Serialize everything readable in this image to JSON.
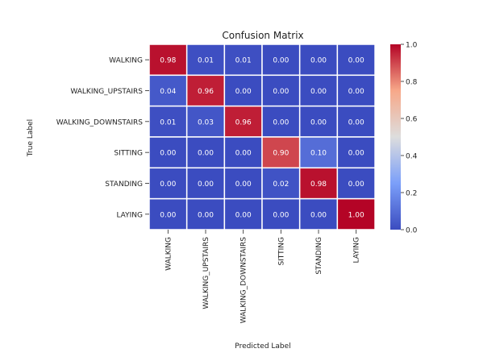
{
  "chart_data": {
    "type": "heatmap",
    "title": "Confusion Matrix",
    "xlabel": "Predicted Label",
    "ylabel": "True Label",
    "row_labels": [
      "WALKING",
      "WALKING_UPSTAIRS",
      "WALKING_DOWNSTAIRS",
      "SITTING",
      "STANDING",
      "LAYING"
    ],
    "col_labels": [
      "WALKING",
      "WALKING_UPSTAIRS",
      "WALKING_DOWNSTAIRS",
      "SITTING",
      "STANDING",
      "LAYING"
    ],
    "values": [
      [
        0.98,
        0.01,
        0.01,
        0.0,
        0.0,
        0.0
      ],
      [
        0.04,
        0.96,
        0.0,
        0.0,
        0.0,
        0.0
      ],
      [
        0.01,
        0.03,
        0.96,
        0.0,
        0.0,
        0.0
      ],
      [
        0.0,
        0.0,
        0.0,
        0.9,
        0.1,
        0.0
      ],
      [
        0.0,
        0.0,
        0.0,
        0.02,
        0.98,
        0.0
      ],
      [
        0.0,
        0.0,
        0.0,
        0.0,
        0.0,
        1.0
      ]
    ],
    "value_labels": [
      [
        "0.98",
        "0.01",
        "0.01",
        "0.00",
        "0.00",
        "0.00"
      ],
      [
        "0.04",
        "0.96",
        "0.00",
        "0.00",
        "0.00",
        "0.00"
      ],
      [
        "0.01",
        "0.03",
        "0.96",
        "0.00",
        "0.00",
        "0.00"
      ],
      [
        "0.00",
        "0.00",
        "0.00",
        "0.90",
        "0.10",
        "0.00"
      ],
      [
        "0.00",
        "0.00",
        "0.00",
        "0.02",
        "0.98",
        "0.00"
      ],
      [
        "0.00",
        "0.00",
        "0.00",
        "0.00",
        "0.00",
        "1.00"
      ]
    ],
    "colormap": "coolwarm",
    "vmin": 0.0,
    "vmax": 1.0,
    "colorbar_ticks": [
      0.0,
      0.2,
      0.4,
      0.6,
      0.8,
      1.0
    ],
    "colorbar_tick_labels": [
      "0.0",
      "0.2",
      "0.4",
      "0.6",
      "0.8",
      "1.0"
    ],
    "colors": {
      "low": "#3b4cc0",
      "mid": "#dddddd",
      "high": "#b40426",
      "gridline": "#ffffff"
    }
  }
}
